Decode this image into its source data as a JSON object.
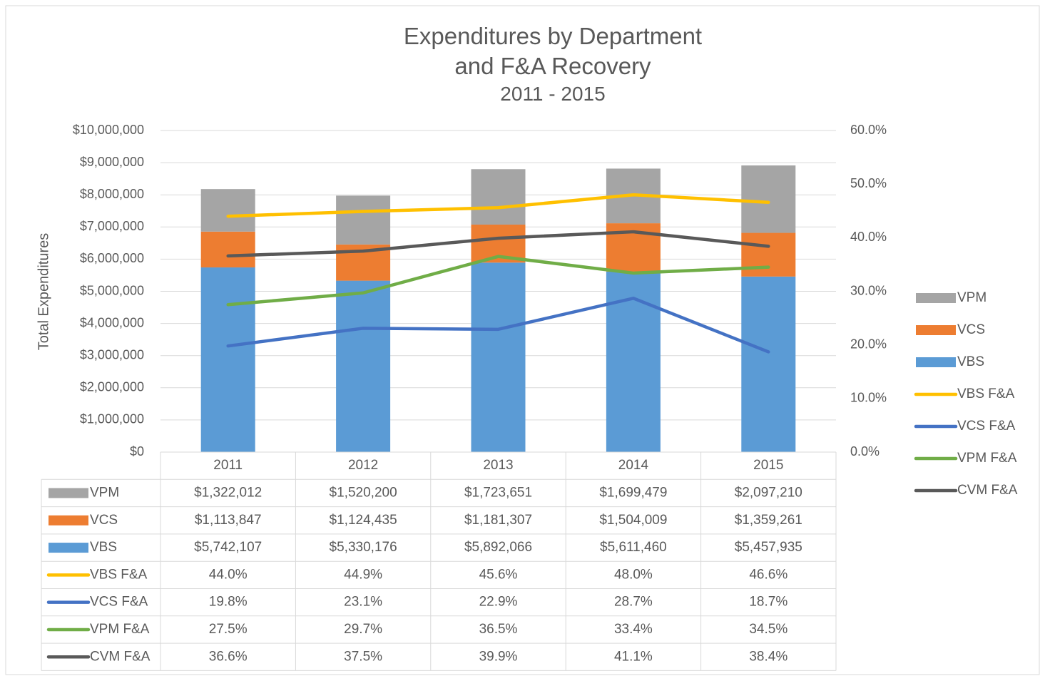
{
  "chart_data": {
    "type": "bar",
    "title": "Expenditures by Department and F&A Recovery",
    "subtitle": "2011 - 2015",
    "ylabel": "Total Expenditures",
    "categories": [
      "2011",
      "2012",
      "2013",
      "2014",
      "2015"
    ],
    "ylim": [
      0,
      10000000
    ],
    "yticks": [
      {
        "value": 0,
        "label": "$0"
      },
      {
        "value": 1000000,
        "label": "$1,000,000"
      },
      {
        "value": 2000000,
        "label": "$2,000,000"
      },
      {
        "value": 3000000,
        "label": "$3,000,000"
      },
      {
        "value": 4000000,
        "label": "$4,000,000"
      },
      {
        "value": 5000000,
        "label": "$5,000,000"
      },
      {
        "value": 6000000,
        "label": "$6,000,000"
      },
      {
        "value": 7000000,
        "label": "$7,000,000"
      },
      {
        "value": 8000000,
        "label": "$8,000,000"
      },
      {
        "value": 9000000,
        "label": "$9,000,000"
      },
      {
        "value": 10000000,
        "label": "$10,000,000"
      }
    ],
    "y2lim": [
      0,
      60
    ],
    "y2ticks": [
      {
        "value": 0,
        "label": "0.0%"
      },
      {
        "value": 10,
        "label": "10.0%"
      },
      {
        "value": 20,
        "label": "20.0%"
      },
      {
        "value": 30,
        "label": "30.0%"
      },
      {
        "value": 40,
        "label": "40.0%"
      },
      {
        "value": 50,
        "label": "50.0%"
      },
      {
        "value": 60,
        "label": "60.0%"
      }
    ],
    "grid": true,
    "stacked": true,
    "legend": "right",
    "series": [
      {
        "name": "VBS",
        "type": "bar",
        "color": "#5b9bd5",
        "values": [
          5742107,
          5330176,
          5892066,
          5611460,
          5457935
        ],
        "value_labels": [
          "$5,742,107",
          "$5,330,176",
          "$5,892,066",
          "$5,611,460",
          "$5,457,935"
        ]
      },
      {
        "name": "VCS",
        "type": "bar",
        "color": "#ed7d31",
        "values": [
          1113847,
          1124435,
          1181307,
          1504009,
          1359261
        ],
        "value_labels": [
          "$1,113,847",
          "$1,124,435",
          "$1,181,307",
          "$1,504,009",
          "$1,359,261"
        ]
      },
      {
        "name": "VPM",
        "type": "bar",
        "color": "#a5a5a5",
        "values": [
          1322012,
          1520200,
          1723651,
          1699479,
          2097210
        ],
        "value_labels": [
          "$1,322,012",
          "$1,520,200",
          "$1,723,651",
          "$1,699,479",
          "$2,097,210"
        ]
      },
      {
        "name": "VBS F&A",
        "type": "line",
        "axis": "y2",
        "color": "#ffc000",
        "values": [
          44.0,
          44.9,
          45.6,
          48.0,
          46.6
        ],
        "value_labels": [
          "44.0%",
          "44.9%",
          "45.6%",
          "48.0%",
          "46.6%"
        ]
      },
      {
        "name": "VCS F&A",
        "type": "line",
        "axis": "y2",
        "color": "#4472c4",
        "values": [
          19.8,
          23.1,
          22.9,
          28.7,
          18.7
        ],
        "value_labels": [
          "19.8%",
          "23.1%",
          "22.9%",
          "28.7%",
          "18.7%"
        ]
      },
      {
        "name": "VPM F&A",
        "type": "line",
        "axis": "y2",
        "color": "#70ad47",
        "values": [
          27.5,
          29.7,
          36.5,
          33.4,
          34.5
        ],
        "value_labels": [
          "27.5%",
          "29.7%",
          "36.5%",
          "33.4%",
          "34.5%"
        ]
      },
      {
        "name": "CVM F&A",
        "type": "line",
        "axis": "y2",
        "color": "#595959",
        "values": [
          36.6,
          37.5,
          39.9,
          41.1,
          38.4
        ],
        "value_labels": [
          "36.6%",
          "37.5%",
          "39.9%",
          "41.1%",
          "38.4%"
        ]
      }
    ]
  }
}
